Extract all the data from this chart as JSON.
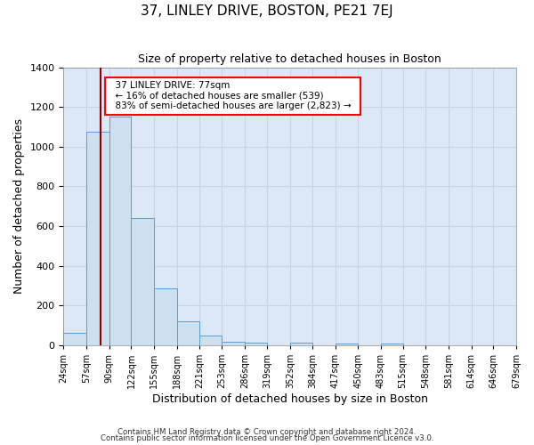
{
  "title": "37, LINLEY DRIVE, BOSTON, PE21 7EJ",
  "subtitle": "Size of property relative to detached houses in Boston",
  "xlabel": "Distribution of detached houses by size in Boston",
  "ylabel": "Number of detached properties",
  "bar_color": "#cce0f0",
  "bar_edge_color": "#5b9bd5",
  "grid_color": "#c8d4e3",
  "background_color": "#dce8f5",
  "redline_x": 77,
  "annotation_title": "37 LINLEY DRIVE: 77sqm",
  "annotation_line1": "← 16% of detached houses are smaller (539)",
  "annotation_line2": "83% of semi-detached houses are larger (2,823) →",
  "bins": [
    24,
    57,
    90,
    122,
    155,
    188,
    221,
    253,
    286,
    319,
    352,
    384,
    417,
    450,
    483,
    515,
    548,
    581,
    614,
    646,
    679
  ],
  "counts": [
    65,
    1075,
    1150,
    640,
    285,
    120,
    50,
    20,
    15,
    0,
    15,
    0,
    10,
    0,
    10,
    0,
    0,
    0,
    0,
    0
  ],
  "ylim": [
    0,
    1400
  ],
  "yticks": [
    0,
    200,
    400,
    600,
    800,
    1000,
    1200,
    1400
  ],
  "footnote1": "Contains HM Land Registry data © Crown copyright and database right 2024.",
  "footnote2": "Contains public sector information licensed under the Open Government Licence v3.0."
}
